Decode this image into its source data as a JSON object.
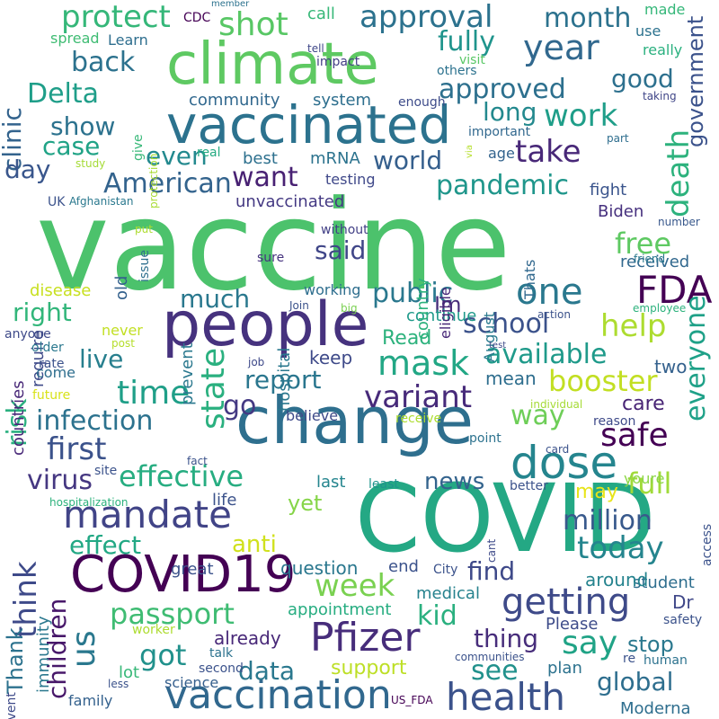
{
  "words": [
    {
      "text": "vaccine",
      "color": "#4cc26c"
    },
    {
      "text": "COVID",
      "color": "#24a884"
    },
    {
      "text": "change",
      "color": "#2e6f8e"
    },
    {
      "text": "people",
      "color": "#46327e"
    },
    {
      "text": "climate",
      "color": "#5ec962"
    },
    {
      "text": "vaccinated",
      "color": "#2c728e"
    },
    {
      "text": "COVID19",
      "color": "#440154"
    },
    {
      "text": "dose",
      "color": "#25858e"
    },
    {
      "text": "vaccination",
      "color": "#31688e"
    },
    {
      "text": "Pfizer",
      "color": "#472d7b"
    },
    {
      "text": "health",
      "color": "#3b528b"
    },
    {
      "text": "mandate",
      "color": "#414487"
    },
    {
      "text": "getting",
      "color": "#3e4a89"
    },
    {
      "text": "FDA",
      "color": "#440154"
    },
    {
      "text": "one",
      "color": "#2a788e"
    },
    {
      "text": "year",
      "color": "#31688e"
    },
    {
      "text": "mask",
      "color": "#22a785"
    },
    {
      "text": "variant",
      "color": "#472a7a"
    },
    {
      "text": "approval",
      "color": "#2c728e"
    },
    {
      "text": "shot",
      "color": "#58c765"
    },
    {
      "text": "protect",
      "color": "#35b779"
    },
    {
      "text": "Delta",
      "color": "#1f9e89"
    },
    {
      "text": "take",
      "color": "#482878"
    },
    {
      "text": "death",
      "color": "#2db27d"
    },
    {
      "text": "time",
      "color": "#1f9f88"
    },
    {
      "text": "first",
      "color": "#3b528b"
    },
    {
      "text": "effective",
      "color": "#27ad81"
    },
    {
      "text": "infection",
      "color": "#2c728e"
    },
    {
      "text": "state",
      "color": "#2ab07f"
    },
    {
      "text": "say",
      "color": "#20a386"
    },
    {
      "text": "us",
      "color": "#2a788e"
    },
    {
      "text": "think",
      "color": "#3e4a89"
    },
    {
      "text": "passport",
      "color": "#3fbc73"
    },
    {
      "text": "million",
      "color": "#38598c"
    },
    {
      "text": "today",
      "color": "#25858e"
    },
    {
      "text": "children",
      "color": "#48186a"
    },
    {
      "text": "full",
      "color": "#a0da39"
    },
    {
      "text": "week",
      "color": "#7ad151"
    },
    {
      "text": "booster",
      "color": "#c2df23"
    },
    {
      "text": "safe",
      "color": "#440154"
    },
    {
      "text": "way",
      "color": "#6ece58"
    },
    {
      "text": "everyone",
      "color": "#1fa188"
    },
    {
      "text": "help",
      "color": "#addc30"
    },
    {
      "text": "available",
      "color": "#1f9a8a"
    },
    {
      "text": "school",
      "color": "#3b528b"
    },
    {
      "text": "public",
      "color": "#2a788e"
    },
    {
      "text": "American",
      "color": "#33638d"
    },
    {
      "text": "world",
      "color": "#355f8d"
    },
    {
      "text": "pandemic",
      "color": "#1f968b"
    },
    {
      "text": "government",
      "color": "#3b528b"
    },
    {
      "text": "want",
      "color": "#482173"
    },
    {
      "text": "work",
      "color": "#1f9e89"
    },
    {
      "text": "approved",
      "color": "#2d708e"
    },
    {
      "text": "month",
      "color": "#2c728e"
    },
    {
      "text": "fully",
      "color": "#1f948c"
    },
    {
      "text": "back",
      "color": "#2c728e"
    },
    {
      "text": "clinic",
      "color": "#33638d"
    },
    {
      "text": "show",
      "color": "#2c728e"
    },
    {
      "text": "case",
      "color": "#20a386"
    },
    {
      "text": "day",
      "color": "#39568c"
    },
    {
      "text": "even",
      "color": "#23898e"
    },
    {
      "text": "good",
      "color": "#2d708e"
    },
    {
      "text": "long",
      "color": "#23898e"
    },
    {
      "text": "free",
      "color": "#5ec962"
    },
    {
      "text": "said",
      "color": "#404688"
    },
    {
      "text": "much",
      "color": "#2a788e"
    },
    {
      "text": "right",
      "color": "#32b67a"
    },
    {
      "text": "live",
      "color": "#277f8e"
    },
    {
      "text": "report",
      "color": "#2a768e"
    },
    {
      "text": "go",
      "color": "#443983"
    },
    {
      "text": "risk",
      "color": "#2ab07f"
    },
    {
      "text": "virus",
      "color": "#453781"
    },
    {
      "text": "effect",
      "color": "#22a884"
    },
    {
      "text": "anti",
      "color": "#d0e11c"
    },
    {
      "text": "news",
      "color": "#33638d"
    },
    {
      "text": "data",
      "color": "#2a788e"
    },
    {
      "text": "got",
      "color": "#21918c"
    },
    {
      "text": "kid",
      "color": "#2ab07f"
    },
    {
      "text": "see",
      "color": "#21918c"
    },
    {
      "text": "thing",
      "color": "#472d7b"
    },
    {
      "text": "support",
      "color": "#bddf26"
    },
    {
      "text": "find",
      "color": "#3e4989"
    },
    {
      "text": "global",
      "color": "#2e6e8e"
    },
    {
      "text": "stop",
      "color": "#2a788e"
    },
    {
      "text": "care",
      "color": "#482475"
    },
    {
      "text": "Im",
      "color": "#472c7a"
    },
    {
      "text": "keep",
      "color": "#3e4a89"
    },
    {
      "text": "Read",
      "color": "#2db27d"
    },
    {
      "text": "two",
      "color": "#34618d"
    },
    {
      "text": "mean",
      "color": "#2e6e8e"
    },
    {
      "text": "received",
      "color": "#31688e"
    },
    {
      "text": "Biden",
      "color": "#46307e"
    },
    {
      "text": "fight",
      "color": "#3a548c"
    },
    {
      "text": "community",
      "color": "#31688e"
    },
    {
      "text": "system",
      "color": "#2e6f8e"
    },
    {
      "text": "best",
      "color": "#2d708e"
    },
    {
      "text": "mRNA",
      "color": "#2c738e"
    },
    {
      "text": "unvaccinated",
      "color": "#443983"
    },
    {
      "text": "testing",
      "color": "#3f4889"
    },
    {
      "text": "age",
      "color": "#33638d"
    },
    {
      "text": "Thank",
      "color": "#2c728e"
    },
    {
      "text": "yet",
      "color": "#86d549"
    },
    {
      "text": "great",
      "color": "#3b528b"
    },
    {
      "text": "may",
      "color": "#e7e419"
    },
    {
      "text": "question",
      "color": "#2a778e"
    },
    {
      "text": "end",
      "color": "#3b528b"
    },
    {
      "text": "Dr",
      "color": "#3f4788"
    },
    {
      "text": "student",
      "color": "#2e6e8e"
    },
    {
      "text": "around",
      "color": "#25838e"
    },
    {
      "text": "medical",
      "color": "#26828e"
    },
    {
      "text": "Please",
      "color": "#3e4c8a"
    },
    {
      "text": "already",
      "color": "#482878"
    },
    {
      "text": "lot",
      "color": "#37b878"
    },
    {
      "text": "appointment",
      "color": "#27ad81"
    },
    {
      "text": "plan",
      "color": "#2c728e"
    },
    {
      "text": "family",
      "color": "#34618d"
    },
    {
      "text": "science",
      "color": "#355f8d"
    },
    {
      "text": "Moderna",
      "color": "#2e6e8e"
    },
    {
      "text": "immunity",
      "color": "#2a788e"
    },
    {
      "text": "life",
      "color": "#3b528b"
    },
    {
      "text": "last",
      "color": "#25858e"
    },
    {
      "text": "least",
      "color": "#1f948c"
    },
    {
      "text": "better",
      "color": "#3b528b"
    },
    {
      "text": "youre",
      "color": "#8bd646"
    },
    {
      "text": "continue",
      "color": "#1f9a8a"
    },
    {
      "text": "believe",
      "color": "#3e4a89"
    },
    {
      "text": "working",
      "color": "#2e6e8e"
    },
    {
      "text": "sure",
      "color": "#46337f"
    },
    {
      "text": "without",
      "color": "#424086"
    },
    {
      "text": "hospital",
      "color": "#2a788e"
    },
    {
      "text": "country",
      "color": "#2db27d"
    },
    {
      "text": "August",
      "color": "#297a8e"
    },
    {
      "text": "eligible",
      "color": "#482878"
    },
    {
      "text": "Thats",
      "color": "#31688e"
    },
    {
      "text": "countries",
      "color": "#482878"
    },
    {
      "text": "require",
      "color": "#3e4a89"
    },
    {
      "text": "disease",
      "color": "#c8e020"
    },
    {
      "text": "old",
      "color": "#34618d"
    },
    {
      "text": "prevent",
      "color": "#2a788e"
    },
    {
      "text": "issue",
      "color": "#2e6f8e"
    },
    {
      "text": "put",
      "color": "#addc30"
    },
    {
      "text": "UK",
      "color": "#3b528b"
    },
    {
      "text": "Afghanistan",
      "color": "#2a788e"
    },
    {
      "text": "give",
      "color": "#37b878"
    },
    {
      "text": "protection",
      "color": "#a8db34"
    },
    {
      "text": "real",
      "color": "#25ab82"
    },
    {
      "text": "study",
      "color": "#a5db36"
    },
    {
      "text": "important",
      "color": "#31688e"
    },
    {
      "text": "enough",
      "color": "#3e4c8a"
    },
    {
      "text": "via",
      "color": "#b5de2b"
    },
    {
      "text": "others",
      "color": "#2c728e"
    },
    {
      "text": "visit",
      "color": "#58c765"
    },
    {
      "text": "impact",
      "color": "#433e85"
    },
    {
      "text": "tell",
      "color": "#3f4788"
    },
    {
      "text": "Learn",
      "color": "#2e6e8e"
    },
    {
      "text": "spread",
      "color": "#3fbc73"
    },
    {
      "text": "CDC",
      "color": "#440154"
    },
    {
      "text": "member",
      "color": "#2c728e"
    },
    {
      "text": "call",
      "color": "#37b878"
    },
    {
      "text": "made",
      "color": "#35b779"
    },
    {
      "text": "use",
      "color": "#2c728e"
    },
    {
      "text": "really",
      "color": "#2ab07f"
    },
    {
      "text": "taking",
      "color": "#404688"
    },
    {
      "text": "part",
      "color": "#2e6e8e"
    },
    {
      "text": "number",
      "color": "#38588c"
    },
    {
      "text": "friend",
      "color": "#2a788e"
    },
    {
      "text": "employee",
      "color": "#2db27d"
    },
    {
      "text": "action",
      "color": "#3b528b"
    },
    {
      "text": "test",
      "color": "#3e4a89"
    },
    {
      "text": "Join",
      "color": "#3b528b"
    },
    {
      "text": "big",
      "color": "#7ad151"
    },
    {
      "text": "job",
      "color": "#3e4989"
    },
    {
      "text": "post",
      "color": "#b5de2b"
    },
    {
      "text": "older",
      "color": "#2a788e"
    },
    {
      "text": "anyone",
      "color": "#3e4a89"
    },
    {
      "text": "rate",
      "color": "#3b528b"
    },
    {
      "text": "come",
      "color": "#2e6e8e"
    },
    {
      "text": "never",
      "color": "#c2df23"
    },
    {
      "text": "future",
      "color": "#d8e219"
    },
    {
      "text": "individual",
      "color": "#a5db36"
    },
    {
      "text": "receive",
      "color": "#addc30"
    },
    {
      "text": "reason",
      "color": "#3e4a89"
    },
    {
      "text": "point",
      "color": "#2c728e"
    },
    {
      "text": "card",
      "color": "#3b528b"
    },
    {
      "text": "access",
      "color": "#3b528b"
    },
    {
      "text": "cant",
      "color": "#3e4a89"
    },
    {
      "text": "site",
      "color": "#3b528b"
    },
    {
      "text": "fact",
      "color": "#3b528b"
    },
    {
      "text": "hospitalization",
      "color": "#2db27d"
    },
    {
      "text": "City",
      "color": "#3b528b"
    },
    {
      "text": "worker",
      "color": "#addc30"
    },
    {
      "text": "talk",
      "color": "#2c728e"
    },
    {
      "text": "second",
      "color": "#3b528b"
    },
    {
      "text": "event",
      "color": "#3e4a89"
    },
    {
      "text": "less",
      "color": "#3b528b"
    },
    {
      "text": "US_FDA",
      "color": "#440154"
    },
    {
      "text": "communities",
      "color": "#3b528b"
    },
    {
      "text": "re",
      "color": "#3b528b"
    },
    {
      "text": "human",
      "color": "#2c728e"
    },
    {
      "text": "safety",
      "color": "#3b528b"
    }
  ]
}
